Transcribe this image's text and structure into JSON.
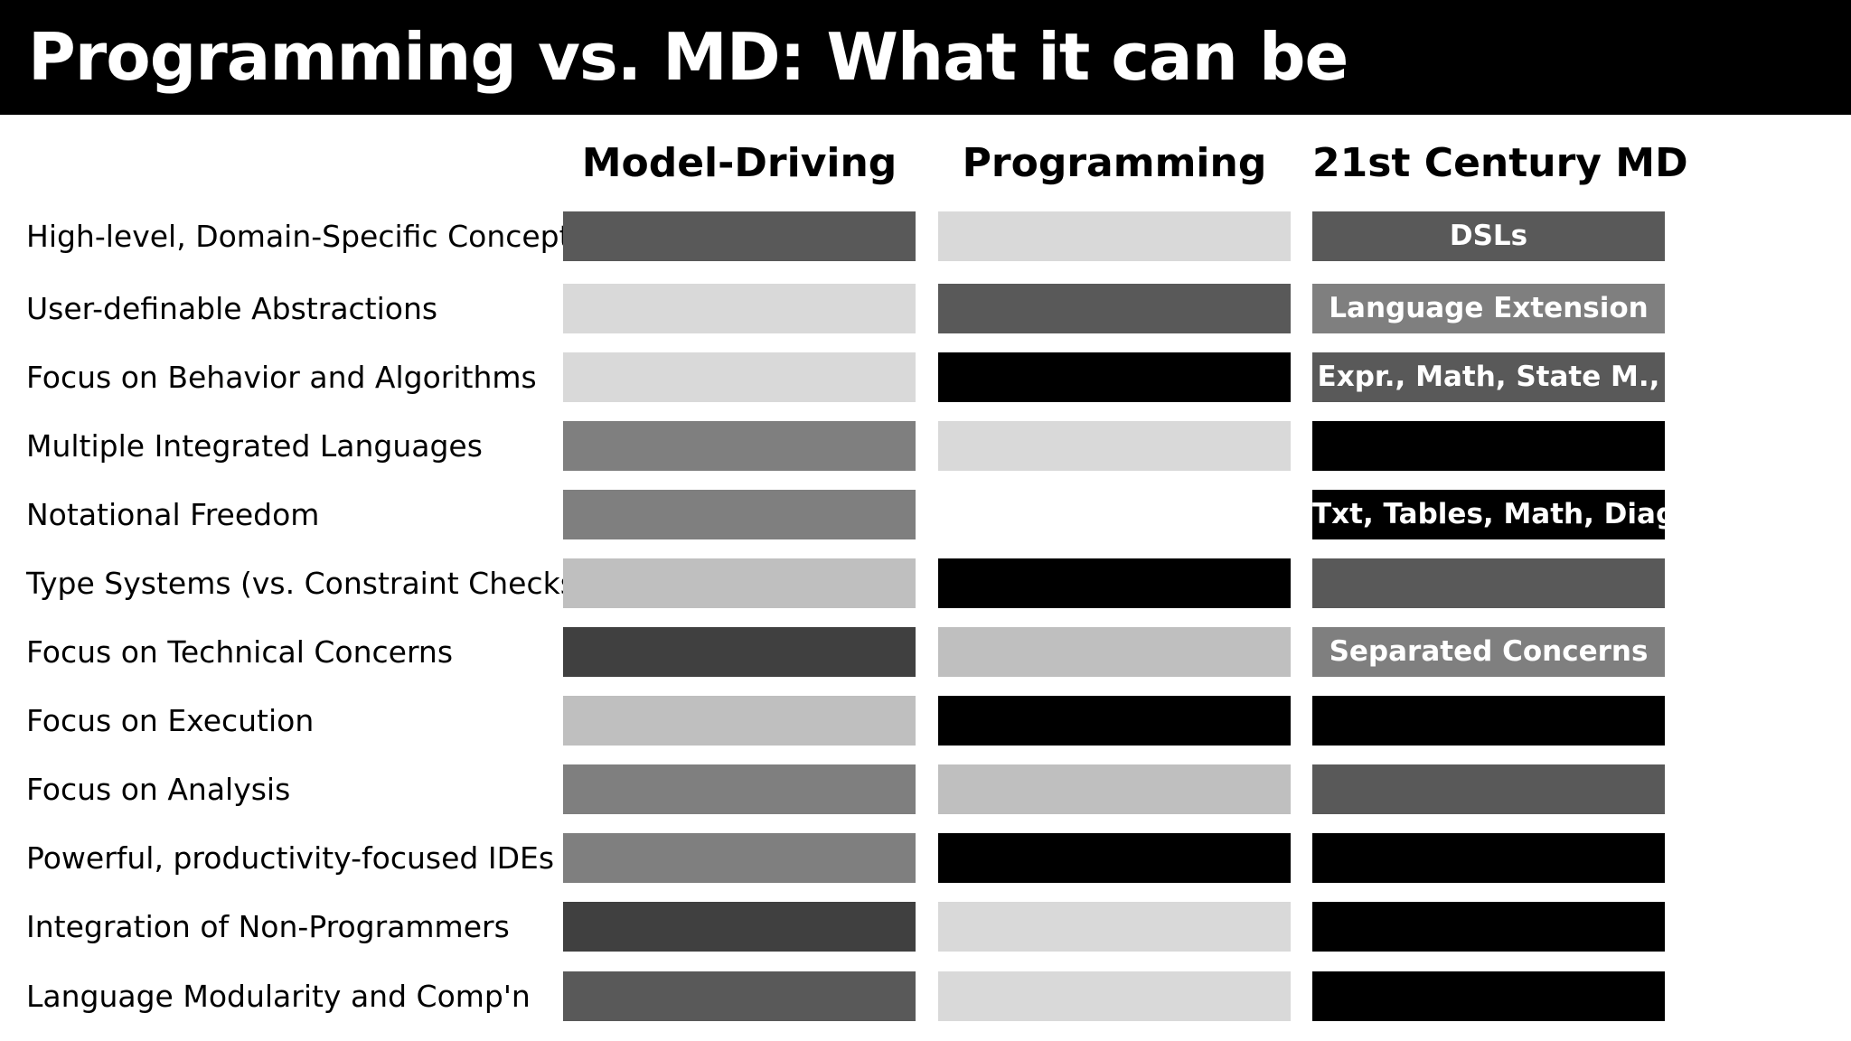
{
  "title": "Programming vs. MD: What it can be",
  "columns": [
    "Model-Driving",
    "Programming",
    "21st Century MD"
  ],
  "shades": {
    "none": "#ffffff",
    "light": "#d9d9d9",
    "medium_light": "#bfbfbf",
    "medium": "#7f7f7f",
    "dark": "#595959",
    "darker": "#404040",
    "black": "#000000"
  },
  "rows": [
    {
      "label": "High-level, Domain-Specific Concepts",
      "cells": [
        {
          "shade": "dark",
          "text": ""
        },
        {
          "shade": "light",
          "text": ""
        },
        {
          "shade": "dark",
          "text": "DSLs"
        }
      ]
    },
    {
      "label": "User-definable Abstractions",
      "cells": [
        {
          "shade": "light",
          "text": ""
        },
        {
          "shade": "dark",
          "text": ""
        },
        {
          "shade": "medium",
          "text": "Language Extension"
        }
      ]
    },
    {
      "label": "Focus on Behavior and Algorithms",
      "cells": [
        {
          "shade": "light",
          "text": ""
        },
        {
          "shade": "black",
          "text": ""
        },
        {
          "shade": "dark",
          "text": "Expr., Math, State M.,"
        }
      ]
    },
    {
      "label": "Multiple Integrated Languages",
      "cells": [
        {
          "shade": "medium",
          "text": ""
        },
        {
          "shade": "light",
          "text": ""
        },
        {
          "shade": "black",
          "text": ""
        }
      ]
    },
    {
      "label": "Notational Freedom",
      "cells": [
        {
          "shade": "medium",
          "text": ""
        },
        {
          "shade": "none",
          "text": ""
        },
        {
          "shade": "black",
          "text": "Txt, Tables, Math, Diag"
        }
      ]
    },
    {
      "label": "Type Systems (vs. Constraint Checks)",
      "cells": [
        {
          "shade": "medium_light",
          "text": ""
        },
        {
          "shade": "black",
          "text": ""
        },
        {
          "shade": "dark",
          "text": ""
        }
      ]
    },
    {
      "label": "Focus on Technical Concerns",
      "cells": [
        {
          "shade": "darker",
          "text": ""
        },
        {
          "shade": "medium_light",
          "text": ""
        },
        {
          "shade": "medium",
          "text": "Separated Concerns"
        }
      ]
    },
    {
      "label": "Focus on Execution",
      "cells": [
        {
          "shade": "medium_light",
          "text": ""
        },
        {
          "shade": "black",
          "text": ""
        },
        {
          "shade": "black",
          "text": ""
        }
      ]
    },
    {
      "label": "Focus on Analysis",
      "cells": [
        {
          "shade": "medium",
          "text": ""
        },
        {
          "shade": "medium_light",
          "text": ""
        },
        {
          "shade": "dark",
          "text": ""
        }
      ]
    },
    {
      "label": "Powerful, productivity-focused IDEs",
      "cells": [
        {
          "shade": "medium",
          "text": ""
        },
        {
          "shade": "black",
          "text": ""
        },
        {
          "shade": "black",
          "text": ""
        }
      ]
    },
    {
      "label": "Integration of Non-Programmers",
      "cells": [
        {
          "shade": "darker",
          "text": ""
        },
        {
          "shade": "light",
          "text": ""
        },
        {
          "shade": "black",
          "text": ""
        }
      ]
    },
    {
      "label": "Language Modularity and Comp'n",
      "cells": [
        {
          "shade": "dark",
          "text": ""
        },
        {
          "shade": "light",
          "text": ""
        },
        {
          "shade": "black",
          "text": ""
        }
      ]
    }
  ]
}
